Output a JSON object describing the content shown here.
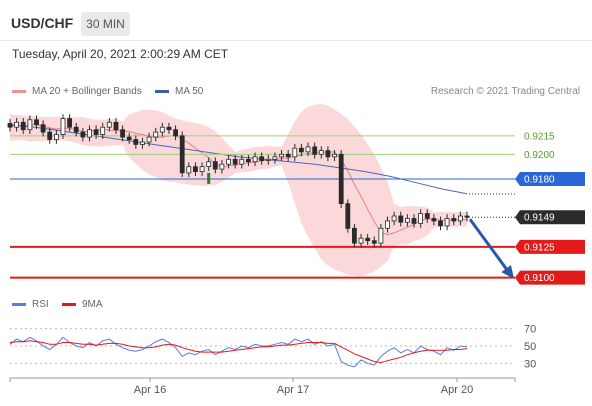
{
  "header": {
    "symbol": "USD/CHF",
    "timeframe": "30 MIN",
    "datetime": "Tuesday, April 20, 2021 2:00:29 AM CET"
  },
  "legend": {
    "ma20_label": "MA 20 + Bollinger Bands",
    "ma50_label": "MA 50",
    "credit": "Research © 2021 Trading Central"
  },
  "colors": {
    "bollinger_fill": "#f7b9bb",
    "ma20": "#e57f85",
    "ma50": "#4a66b8",
    "candle": "#2a2a2a",
    "green_candle": "#2a7d2a",
    "resistance_green": "#9fcf7a",
    "resistance_label_green": "#5a9e2a",
    "support_red": "#e21a1a",
    "pivot_blue": "#2a66d6",
    "price_tag_dark": "#2b2b2b",
    "arrow": "#2a58a8",
    "rsi": "#5b7be0",
    "rsi_ma": "#e21a1a"
  },
  "chart_data": [
    {
      "type": "candlestick",
      "title": "USD/CHF 30 MIN",
      "x_labels": [
        "Apr 16",
        "Apr 17",
        "Apr 20"
      ],
      "ylim": [
        0.909,
        0.924
      ],
      "price_levels": [
        {
          "value": 0.9215,
          "label": "0.9215",
          "kind": "resistance"
        },
        {
          "value": 0.92,
          "label": "0.9200",
          "kind": "resistance"
        },
        {
          "value": 0.918,
          "label": "0.9180",
          "kind": "pivot"
        },
        {
          "value": 0.9149,
          "label": "0.9149",
          "kind": "last_price"
        },
        {
          "value": 0.9125,
          "label": "0.9125",
          "kind": "support"
        },
        {
          "value": 0.91,
          "label": "0.9100",
          "kind": "support"
        }
      ],
      "close_approx": [
        0.9222,
        0.9226,
        0.922,
        0.9228,
        0.9224,
        0.9218,
        0.9212,
        0.9216,
        0.9229,
        0.9222,
        0.9218,
        0.9214,
        0.922,
        0.9216,
        0.9222,
        0.9226,
        0.922,
        0.9214,
        0.9212,
        0.9208,
        0.921,
        0.9214,
        0.9218,
        0.9222,
        0.922,
        0.9215,
        0.9185,
        0.919,
        0.9186,
        0.919,
        0.9194,
        0.9188,
        0.9192,
        0.9196,
        0.9192,
        0.9196,
        0.9194,
        0.9198,
        0.9195,
        0.9196,
        0.9198,
        0.92,
        0.9198,
        0.9205,
        0.9202,
        0.9206,
        0.92,
        0.9203,
        0.9198,
        0.92,
        0.916,
        0.914,
        0.9128,
        0.9132,
        0.913,
        0.9128,
        0.914,
        0.9146,
        0.915,
        0.9145,
        0.9148,
        0.9144,
        0.9152,
        0.9148,
        0.9146,
        0.9142,
        0.9148,
        0.9146,
        0.915,
        0.9149
      ],
      "ma50_approx": [
        0.9224,
        0.9222,
        0.9219,
        0.9216,
        0.9213,
        0.921,
        0.9207,
        0.9204,
        0.9201,
        0.9198,
        0.9196,
        0.9194,
        0.9192,
        0.9189,
        0.9186,
        0.9182,
        0.9177,
        0.9172,
        0.9168
      ],
      "forecast": {
        "from": 0.9149,
        "to": 0.91
      }
    },
    {
      "type": "line",
      "title": "RSI",
      "ylim": [
        20,
        80
      ],
      "y_ticks": [
        "70",
        "50",
        "30"
      ],
      "series": [
        {
          "name": "RSI",
          "values": [
            52,
            58,
            55,
            60,
            56,
            50,
            46,
            52,
            60,
            54,
            50,
            48,
            54,
            50,
            56,
            58,
            52,
            48,
            45,
            44,
            46,
            50,
            55,
            58,
            54,
            48,
            38,
            42,
            40,
            44,
            46,
            40,
            44,
            48,
            46,
            50,
            48,
            52,
            50,
            50,
            52,
            54,
            52,
            58,
            55,
            58,
            52,
            55,
            50,
            52,
            32,
            28,
            26,
            34,
            30,
            28,
            38,
            44,
            48,
            42,
            46,
            42,
            50,
            46,
            44,
            40,
            48,
            45,
            50,
            49
          ]
        },
        {
          "name": "9MA",
          "values": [
            54,
            55,
            55,
            56,
            55,
            54,
            52,
            52,
            54,
            54,
            53,
            52,
            52,
            51,
            52,
            53,
            53,
            52,
            50,
            49,
            48,
            48,
            49,
            51,
            52,
            51,
            48,
            46,
            44,
            43,
            43,
            43,
            43,
            44,
            45,
            46,
            47,
            48,
            49,
            49,
            50,
            51,
            51,
            52,
            53,
            54,
            54,
            54,
            53,
            53,
            49,
            45,
            41,
            38,
            35,
            32,
            31,
            33,
            35,
            37,
            40,
            42,
            44,
            45,
            45,
            45,
            45,
            46,
            46,
            47
          ]
        }
      ]
    }
  ]
}
